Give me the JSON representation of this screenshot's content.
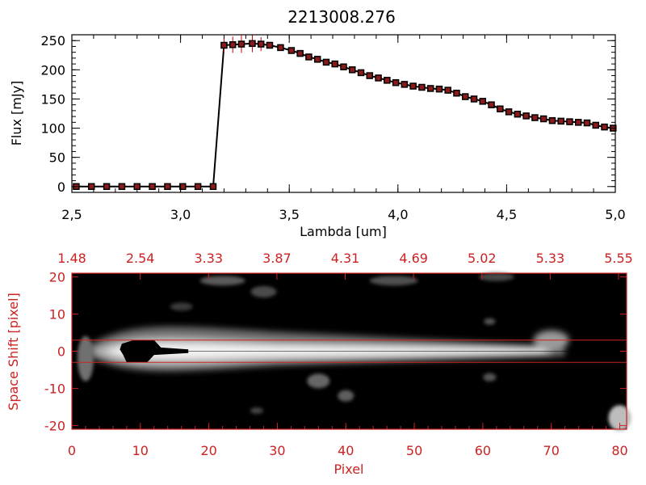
{
  "chart_data": [
    {
      "type": "line",
      "title": "2213008.276",
      "xlabel": "Lambda [um]",
      "ylabel": "Flux [mJy]",
      "xlim": [
        2.5,
        5.0
      ],
      "ylim": [
        -10,
        260
      ],
      "xticks": [
        "2.5",
        "3.0",
        "3.5",
        "4.0",
        "4.5",
        "5.0"
      ],
      "yticks": [
        "0",
        "50",
        "100",
        "150",
        "200",
        "250"
      ],
      "grid": false,
      "colors": {
        "line": "#000000",
        "marker": "#8b1a1a",
        "errorbar": "#cc0000"
      },
      "series": [
        {
          "x": [
            2.52,
            2.59,
            2.66,
            2.73,
            2.8,
            2.87,
            2.94,
            3.01,
            3.08,
            3.15,
            3.2,
            3.24,
            3.28,
            3.33,
            3.37,
            3.41,
            3.46,
            3.51,
            3.55,
            3.59,
            3.63,
            3.67,
            3.71,
            3.75,
            3.79,
            3.83,
            3.87,
            3.91,
            3.95,
            3.99,
            4.03,
            4.07,
            4.11,
            4.15,
            4.19,
            4.23,
            4.27,
            4.31,
            4.35,
            4.39,
            4.43,
            4.47,
            4.51,
            4.55,
            4.59,
            4.63,
            4.67,
            4.71,
            4.75,
            4.79,
            4.83,
            4.87,
            4.91,
            4.95,
            4.99
          ],
          "y": [
            0,
            0,
            0,
            0,
            0,
            0,
            0,
            0,
            0,
            0,
            242,
            243,
            244,
            245,
            244,
            242,
            238,
            233,
            228,
            222,
            218,
            213,
            210,
            205,
            200,
            195,
            190,
            186,
            182,
            178,
            175,
            172,
            170,
            168,
            167,
            165,
            160,
            154,
            150,
            146,
            140,
            133,
            128,
            124,
            121,
            118,
            116,
            113,
            112,
            111,
            110,
            109,
            105,
            102,
            100
          ],
          "yerr": [
            0,
            0,
            0,
            0,
            0,
            0,
            0,
            0,
            0,
            0,
            12,
            14,
            15,
            15,
            12,
            4,
            4,
            3,
            3,
            3,
            3,
            3,
            3,
            3,
            3,
            3,
            3,
            3,
            3,
            3,
            3,
            3,
            3,
            3,
            3,
            3,
            3,
            3,
            3,
            3,
            3,
            3,
            3,
            3,
            3,
            3,
            3,
            3,
            3,
            3,
            6,
            5,
            4,
            4,
            4
          ]
        }
      ]
    },
    {
      "type": "heatmap",
      "xlabel": "Pixel",
      "ylabel": "Space Shift [pixel]",
      "xlim": [
        0,
        81
      ],
      "ylim": [
        -21,
        21
      ],
      "xticks": [
        "0",
        "10",
        "20",
        "30",
        "40",
        "50",
        "60",
        "70",
        "80"
      ],
      "yticks": [
        "-20",
        "-10",
        "0",
        "10",
        "20"
      ],
      "top_ticks": [
        "1.48",
        "2.54",
        "3.33",
        "3.87",
        "4.31",
        "4.69",
        "5.02",
        "5.33",
        "5.55"
      ],
      "extraction_aperture": [
        -3,
        3
      ],
      "colormap": "grayscale",
      "colors": {
        "axes": "#cc2222",
        "aperture": "#cc2222"
      }
    }
  ]
}
